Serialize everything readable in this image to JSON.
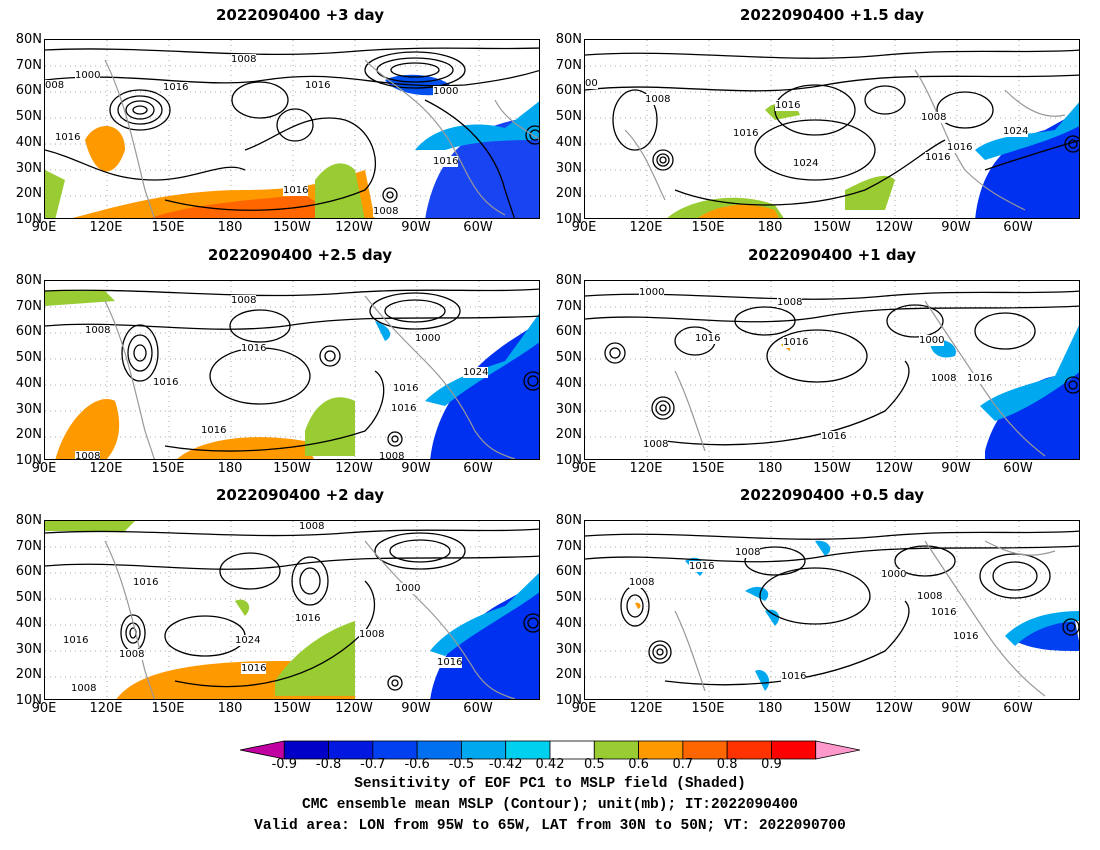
{
  "panels": [
    {
      "title": "2022090400  +3 day"
    },
    {
      "title": "2022090400  +1.5 day"
    },
    {
      "title": "2022090400  +2.5 day"
    },
    {
      "title": "2022090400  +1 day"
    },
    {
      "title": "2022090400  +2 day"
    },
    {
      "title": "2022090400  +0.5 day"
    }
  ],
  "axes": {
    "lat_labels": [
      "80N",
      "70N",
      "60N",
      "50N",
      "40N",
      "30N",
      "20N",
      "10N"
    ],
    "lon_labels": [
      "90E",
      "120E",
      "150E",
      "180",
      "150W",
      "120W",
      "90W",
      "60W"
    ]
  },
  "contour_labels": {
    "p0": [
      "1008",
      "1000",
      "1016",
      "1016",
      "008",
      "1000",
      "1016",
      "1016",
      "1016",
      "1008"
    ],
    "p1": [
      "00",
      "1008",
      "1016",
      "1016",
      "1024",
      "1008",
      "1024",
      "1016",
      "1016"
    ],
    "p2": [
      "1008",
      "1008",
      "1016",
      "1016",
      "1024",
      "1000",
      "1016",
      "1016",
      "1016",
      "1008",
      "1008"
    ],
    "p3": [
      "1000",
      "1008",
      "1016",
      "1016",
      "1000",
      "1008",
      "1016",
      "1008",
      "1016"
    ],
    "p4": [
      "1008",
      "1016",
      "1016",
      "1024",
      "1016",
      "1016",
      "1000",
      "1008",
      "1016",
      "1008",
      "1008"
    ],
    "p5": [
      "1008",
      "1008",
      "1016",
      "1000",
      "1008",
      "1016",
      "1016",
      "1016"
    ]
  },
  "colorbar": {
    "labels": [
      "-0.9",
      "-0.8",
      "-0.7",
      "-0.6",
      "-0.5",
      "-0.42",
      "0.42",
      "0.5",
      "0.6",
      "0.7",
      "0.8",
      "0.9"
    ],
    "colors": [
      "#c000a0",
      "#0000c8",
      "#0018e0",
      "#0040f0",
      "#0070f0",
      "#00a8f0",
      "#00d0f0",
      "#ffffff",
      "#99cc33",
      "#ff9900",
      "#ff6600",
      "#ff3300",
      "#ff0000",
      "#ff99cc"
    ]
  },
  "caption": {
    "line1": "Sensitivity of EOF PC1 to MSLP field (Shaded)",
    "line2": "CMC ensemble mean MSLP (Contour); unit(mb); IT:2022090400",
    "line3": "Valid area: LON from 95W to 65W, LAT from 30N to 50N; VT: 2022090700"
  }
}
